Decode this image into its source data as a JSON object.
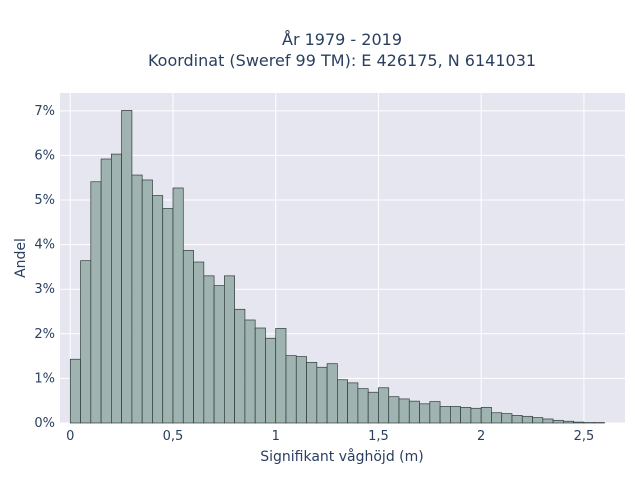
{
  "chart_data": {
    "type": "bar",
    "title_line1": "År 1979 - 2019",
    "title_line2": "Koordinat (Sweref 99 TM): E 426175, N 6141031",
    "xlabel": "Signifikant våghöjd (m)",
    "ylabel": "Andel",
    "xlim": [
      -0.05,
      2.7
    ],
    "ylim": [
      0,
      0.074
    ],
    "bin_width": 0.05,
    "x_ticks": [
      {
        "value": 0,
        "label": "0"
      },
      {
        "value": 0.5,
        "label": "0,5"
      },
      {
        "value": 1,
        "label": "1"
      },
      {
        "value": 1.5,
        "label": "1,5"
      },
      {
        "value": 2,
        "label": "2"
      },
      {
        "value": 2.5,
        "label": "2,5"
      }
    ],
    "y_ticks": [
      {
        "value": 0,
        "label": "0%"
      },
      {
        "value": 0.01,
        "label": "1%"
      },
      {
        "value": 0.02,
        "label": "2%"
      },
      {
        "value": 0.03,
        "label": "3%"
      },
      {
        "value": 0.04,
        "label": "4%"
      },
      {
        "value": 0.05,
        "label": "5%"
      },
      {
        "value": 0.06,
        "label": "6%"
      },
      {
        "value": 0.07,
        "label": "7%"
      }
    ],
    "bin_starts": [
      0.0,
      0.05,
      0.1,
      0.15,
      0.2,
      0.25,
      0.3,
      0.35,
      0.4,
      0.45,
      0.5,
      0.55,
      0.6,
      0.65,
      0.7,
      0.75,
      0.8,
      0.85,
      0.9,
      0.95,
      1.0,
      1.05,
      1.1,
      1.15,
      1.2,
      1.25,
      1.3,
      1.35,
      1.4,
      1.45,
      1.5,
      1.55,
      1.6,
      1.65,
      1.7,
      1.75,
      1.8,
      1.85,
      1.9,
      1.95,
      2.0,
      2.05,
      2.1,
      2.15,
      2.2,
      2.25,
      2.3,
      2.35,
      2.4,
      2.45,
      2.5,
      2.55
    ],
    "values": [
      0.0143,
      0.0364,
      0.0541,
      0.0592,
      0.0603,
      0.0701,
      0.0556,
      0.0545,
      0.051,
      0.0481,
      0.0527,
      0.0387,
      0.0361,
      0.033,
      0.0308,
      0.033,
      0.0255,
      0.0231,
      0.0213,
      0.019,
      0.0212,
      0.0151,
      0.0149,
      0.0136,
      0.0125,
      0.0133,
      0.0097,
      0.009,
      0.0077,
      0.0069,
      0.0079,
      0.0059,
      0.0054,
      0.0049,
      0.0043,
      0.0048,
      0.0037,
      0.0037,
      0.0035,
      0.0033,
      0.0035,
      0.0023,
      0.0021,
      0.0017,
      0.0015,
      0.0012,
      0.0009,
      0.0006,
      0.0004,
      0.0002,
      0.0001,
      0.0001
    ],
    "colors": {
      "bar": "#9fb3b0",
      "bar_edge": "#2f3b39",
      "plot_bg": "#e5e6f0",
      "grid": "#ffffff",
      "text": "#2a3f5f"
    },
    "grid": true
  }
}
